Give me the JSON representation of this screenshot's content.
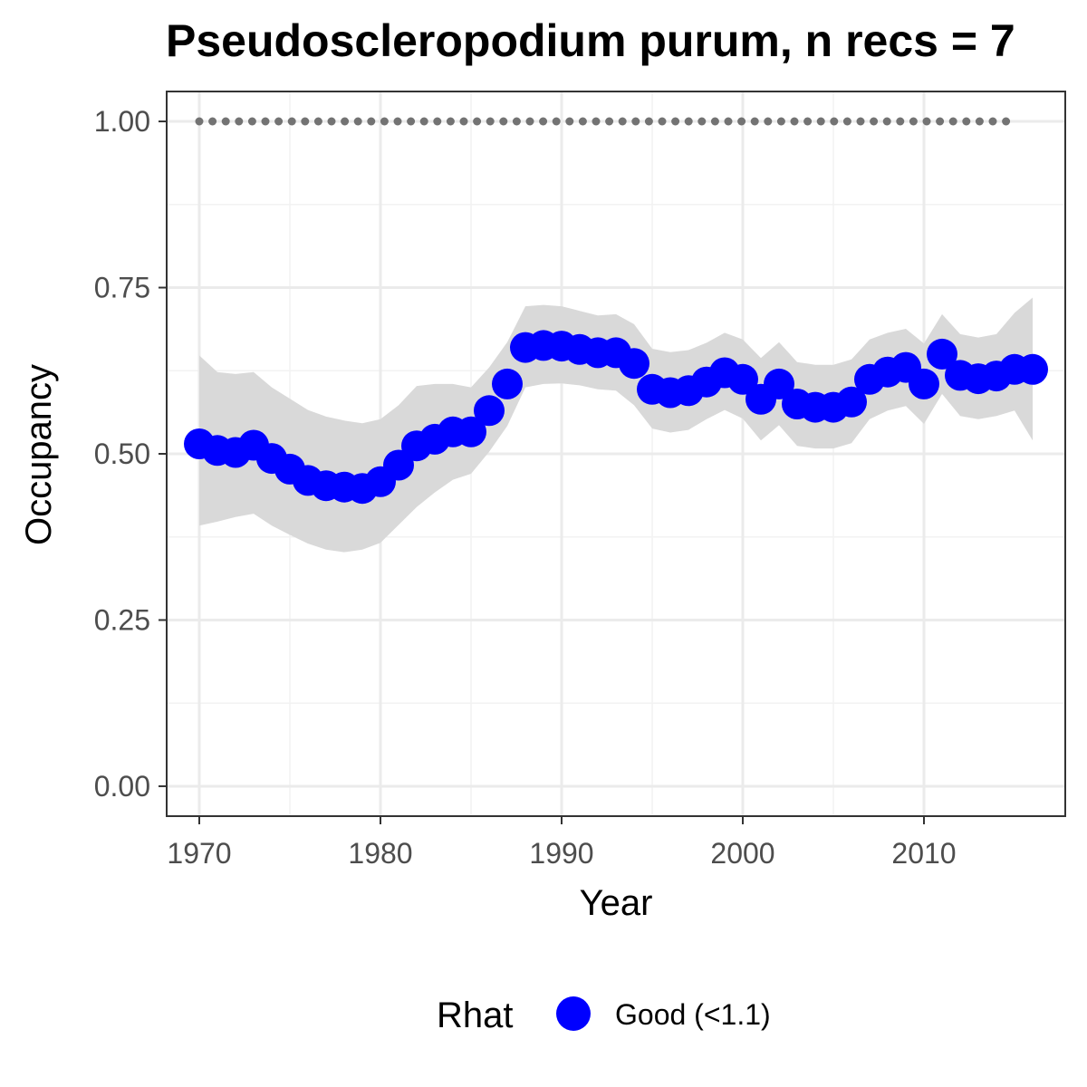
{
  "chart_data": {
    "type": "line",
    "title": "Pseudoscleropodium purum, n recs = 7",
    "xlabel": "Year",
    "ylabel": "Occupancy",
    "xlim": [
      1968.2,
      2017.8
    ],
    "ylim": [
      -0.045,
      1.045
    ],
    "x_ticks": [
      1970,
      1980,
      1990,
      2000,
      2010
    ],
    "x_tick_labels": [
      "1970",
      "1980",
      "1990",
      "2000",
      "2010"
    ],
    "y_ticks": [
      0,
      0.25,
      0.5,
      0.75,
      1.0
    ],
    "y_tick_labels": [
      "0.00",
      "0.25",
      "0.50",
      "0.75",
      "1.00"
    ],
    "grid": true,
    "legend": {
      "title": "Rhat",
      "position": "bottom",
      "entries": [
        {
          "label": "Good (<1.1)",
          "color": "#0000ff"
        }
      ]
    },
    "colors": {
      "points": "#0000ff",
      "ribbon": "#d9d9d9",
      "reference_dots": "#737373",
      "grid_major": "#ebebeb",
      "grid_minor": "#f2f2f2",
      "panel_border": "#333333"
    },
    "series": [
      {
        "name": "Good (<1.1)",
        "x": [
          1970,
          1971,
          1972,
          1973,
          1974,
          1975,
          1976,
          1977,
          1978,
          1979,
          1980,
          1981,
          1982,
          1983,
          1984,
          1985,
          1986,
          1987,
          1988,
          1989,
          1990,
          1991,
          1992,
          1993,
          1994,
          1995,
          1996,
          1997,
          1998,
          1999,
          2000,
          2001,
          2002,
          2003,
          2004,
          2005,
          2006,
          2007,
          2008,
          2009,
          2010,
          2011,
          2012,
          2013,
          2014,
          2015,
          2016
        ],
        "y": [
          0.515,
          0.505,
          0.502,
          0.513,
          0.493,
          0.477,
          0.46,
          0.452,
          0.45,
          0.448,
          0.458,
          0.483,
          0.512,
          0.522,
          0.533,
          0.533,
          0.565,
          0.605,
          0.66,
          0.663,
          0.662,
          0.657,
          0.652,
          0.652,
          0.636,
          0.597,
          0.592,
          0.595,
          0.608,
          0.622,
          0.612,
          0.582,
          0.605,
          0.575,
          0.57,
          0.57,
          0.578,
          0.612,
          0.623,
          0.63,
          0.605,
          0.65,
          0.618,
          0.613,
          0.617,
          0.627,
          0.627
        ],
        "lower": [
          0.392,
          0.398,
          0.405,
          0.41,
          0.392,
          0.378,
          0.365,
          0.356,
          0.352,
          0.356,
          0.366,
          0.393,
          0.42,
          0.442,
          0.461,
          0.47,
          0.503,
          0.542,
          0.6,
          0.605,
          0.606,
          0.603,
          0.597,
          0.595,
          0.573,
          0.538,
          0.532,
          0.536,
          0.552,
          0.566,
          0.553,
          0.52,
          0.543,
          0.512,
          0.508,
          0.508,
          0.516,
          0.552,
          0.565,
          0.572,
          0.545,
          0.59,
          0.557,
          0.552,
          0.557,
          0.565,
          0.52
        ],
        "upper": [
          0.648,
          0.623,
          0.62,
          0.623,
          0.6,
          0.583,
          0.566,
          0.556,
          0.55,
          0.546,
          0.552,
          0.573,
          0.602,
          0.605,
          0.605,
          0.6,
          0.63,
          0.668,
          0.722,
          0.724,
          0.722,
          0.715,
          0.708,
          0.71,
          0.695,
          0.658,
          0.653,
          0.656,
          0.667,
          0.682,
          0.672,
          0.644,
          0.668,
          0.638,
          0.634,
          0.634,
          0.642,
          0.672,
          0.682,
          0.688,
          0.666,
          0.71,
          0.68,
          0.675,
          0.68,
          0.712,
          0.735
        ]
      }
    ],
    "reference": {
      "x_start": 1970,
      "x_end": 2015,
      "y": 1.0
    }
  }
}
